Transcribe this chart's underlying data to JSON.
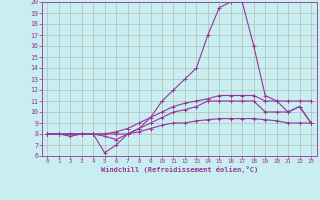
{
  "x": [
    0,
    1,
    2,
    3,
    4,
    5,
    6,
    7,
    8,
    9,
    10,
    11,
    12,
    13,
    14,
    15,
    16,
    17,
    18,
    19,
    20,
    21,
    22,
    23
  ],
  "line1": [
    8,
    8,
    8,
    8,
    8,
    6.3,
    7,
    8,
    8.5,
    9.5,
    11,
    12,
    13,
    14,
    17,
    19.5,
    20,
    20,
    16,
    11.5,
    11,
    10,
    10.5,
    9
  ],
  "line2": [
    8,
    8,
    8,
    8,
    8,
    8,
    8.2,
    8.5,
    9,
    9.5,
    10,
    10.5,
    10.8,
    11,
    11.2,
    11.5,
    11.5,
    11.5,
    11.5,
    11,
    11,
    11,
    11,
    11
  ],
  "line3": [
    8,
    8,
    7.8,
    8,
    8,
    7.8,
    7.5,
    8,
    8.5,
    9,
    9.5,
    10,
    10.2,
    10.5,
    11,
    11,
    11,
    11,
    11,
    10,
    10,
    10,
    10.5,
    9
  ],
  "line4": [
    8,
    8,
    8,
    8,
    8,
    8,
    8,
    8,
    8.2,
    8.5,
    8.8,
    9,
    9,
    9.2,
    9.3,
    9.4,
    9.4,
    9.4,
    9.4,
    9.3,
    9.2,
    9,
    9,
    9
  ],
  "ylim": [
    6,
    20
  ],
  "xlim": [
    -0.5,
    23.5
  ],
  "yticks": [
    6,
    7,
    8,
    9,
    10,
    11,
    12,
    13,
    14,
    15,
    16,
    17,
    18,
    19,
    20
  ],
  "xticks": [
    0,
    1,
    2,
    3,
    4,
    5,
    6,
    7,
    8,
    9,
    10,
    11,
    12,
    13,
    14,
    15,
    16,
    17,
    18,
    19,
    20,
    21,
    22,
    23
  ],
  "line_color": "#993399",
  "bg_color": "#c8eef0",
  "grid_color": "#b0b0b8",
  "xlabel": "Windchill (Refroidissement éolien,°C)",
  "marker": "+"
}
